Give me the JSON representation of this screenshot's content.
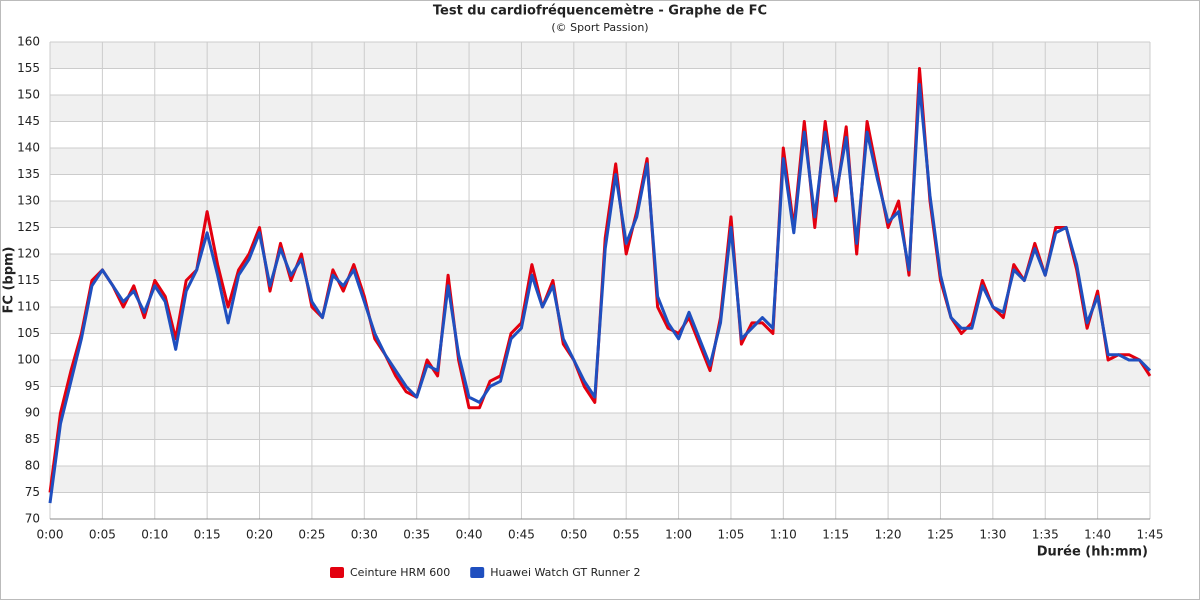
{
  "chart_data": {
    "type": "line",
    "title": "Test du cardiofréquencemètre - Graphe de FC",
    "subtitle": "(© Sport Passion)",
    "x_label": "Durée (hh:mm)",
    "y_label": "FC (bpm)",
    "x": [
      0,
      1,
      2,
      3,
      4,
      5,
      6,
      7,
      8,
      9,
      10,
      11,
      12,
      13,
      14,
      15,
      16,
      17,
      18,
      19,
      20,
      21,
      22,
      23,
      24,
      25,
      26,
      27,
      28,
      29,
      30,
      31,
      32,
      33,
      34,
      35,
      36,
      37,
      38,
      39,
      40,
      41,
      42,
      43,
      44,
      45,
      46,
      47,
      48,
      49,
      50,
      51,
      52,
      53,
      54,
      55,
      56,
      57,
      58,
      59,
      60,
      61,
      62,
      63,
      64,
      65,
      66,
      67,
      68,
      69,
      70,
      71,
      72,
      73,
      74,
      75,
      76,
      77,
      78,
      79,
      80,
      81,
      82,
      83,
      84,
      85,
      86,
      87,
      88,
      89,
      90,
      91,
      92,
      93,
      94,
      95,
      96,
      97,
      98,
      99,
      100,
      101,
      102,
      103,
      104,
      105
    ],
    "series": [
      {
        "name": "Ceinture HRM 600",
        "color": "#e3000f",
        "values": [
          75,
          90,
          98,
          105,
          115,
          117,
          114,
          110,
          114,
          108,
          115,
          112,
          104,
          115,
          117,
          128,
          118,
          110,
          117,
          120,
          125,
          113,
          122,
          115,
          120,
          110,
          108,
          117,
          113,
          118,
          112,
          104,
          101,
          97,
          94,
          93,
          100,
          97,
          116,
          100,
          91,
          91,
          96,
          97,
          105,
          107,
          118,
          110,
          115,
          103,
          100,
          95,
          92,
          123,
          137,
          120,
          128,
          138,
          110,
          106,
          105,
          108,
          103,
          98,
          108,
          127,
          103,
          107,
          107,
          105,
          140,
          125,
          145,
          125,
          145,
          130,
          144,
          120,
          145,
          135,
          125,
          130,
          116,
          155,
          130,
          115,
          108,
          105,
          107,
          115,
          110,
          108,
          118,
          115,
          122,
          116,
          125,
          125,
          117,
          106,
          113,
          100,
          101,
          101,
          100,
          97
        ]
      },
      {
        "name": "Huawei Watch GT Runner 2",
        "color": "#1f4fbf",
        "values": [
          73,
          88,
          96,
          104,
          114,
          117,
          114,
          111,
          113,
          109,
          114,
          111,
          102,
          113,
          117,
          124,
          116,
          107,
          116,
          119,
          124,
          114,
          121,
          116,
          119,
          111,
          108,
          116,
          114,
          117,
          111,
          105,
          101,
          98,
          95,
          93,
          99,
          98,
          114,
          101,
          93,
          92,
          95,
          96,
          104,
          106,
          116,
          110,
          114,
          104,
          100,
          96,
          93,
          121,
          135,
          122,
          127,
          137,
          112,
          107,
          104,
          109,
          104,
          99,
          107,
          125,
          104,
          106,
          108,
          106,
          138,
          124,
          143,
          127,
          143,
          131,
          142,
          122,
          143,
          134,
          126,
          128,
          117,
          152,
          131,
          116,
          108,
          106,
          106,
          114,
          110,
          109,
          117,
          115,
          121,
          116,
          124,
          125,
          118,
          107,
          112,
          101,
          101,
          100,
          100,
          98
        ]
      }
    ],
    "xlim": [
      0,
      105
    ],
    "xticks": [
      {
        "value": 0,
        "label": "0:00"
      },
      {
        "value": 5,
        "label": "0:05"
      },
      {
        "value": 10,
        "label": "0:10"
      },
      {
        "value": 15,
        "label": "0:15"
      },
      {
        "value": 20,
        "label": "0:20"
      },
      {
        "value": 25,
        "label": "0:25"
      },
      {
        "value": 30,
        "label": "0:30"
      },
      {
        "value": 35,
        "label": "0:35"
      },
      {
        "value": 40,
        "label": "0:40"
      },
      {
        "value": 45,
        "label": "0:45"
      },
      {
        "value": 50,
        "label": "0:50"
      },
      {
        "value": 55,
        "label": "0:55"
      },
      {
        "value": 60,
        "label": "1:00"
      },
      {
        "value": 65,
        "label": "1:05"
      },
      {
        "value": 70,
        "label": "1:10"
      },
      {
        "value": 75,
        "label": "1:15"
      },
      {
        "value": 80,
        "label": "1:20"
      },
      {
        "value": 85,
        "label": "1:25"
      },
      {
        "value": 90,
        "label": "1:30"
      },
      {
        "value": 95,
        "label": "1:35"
      },
      {
        "value": 100,
        "label": "1:40"
      },
      {
        "value": 105,
        "label": "1:45"
      }
    ],
    "ylim": [
      70,
      160
    ],
    "yticks": [
      70,
      75,
      80,
      85,
      90,
      95,
      100,
      105,
      110,
      115,
      120,
      125,
      130,
      135,
      140,
      145,
      150,
      155,
      160
    ],
    "grid": true
  }
}
